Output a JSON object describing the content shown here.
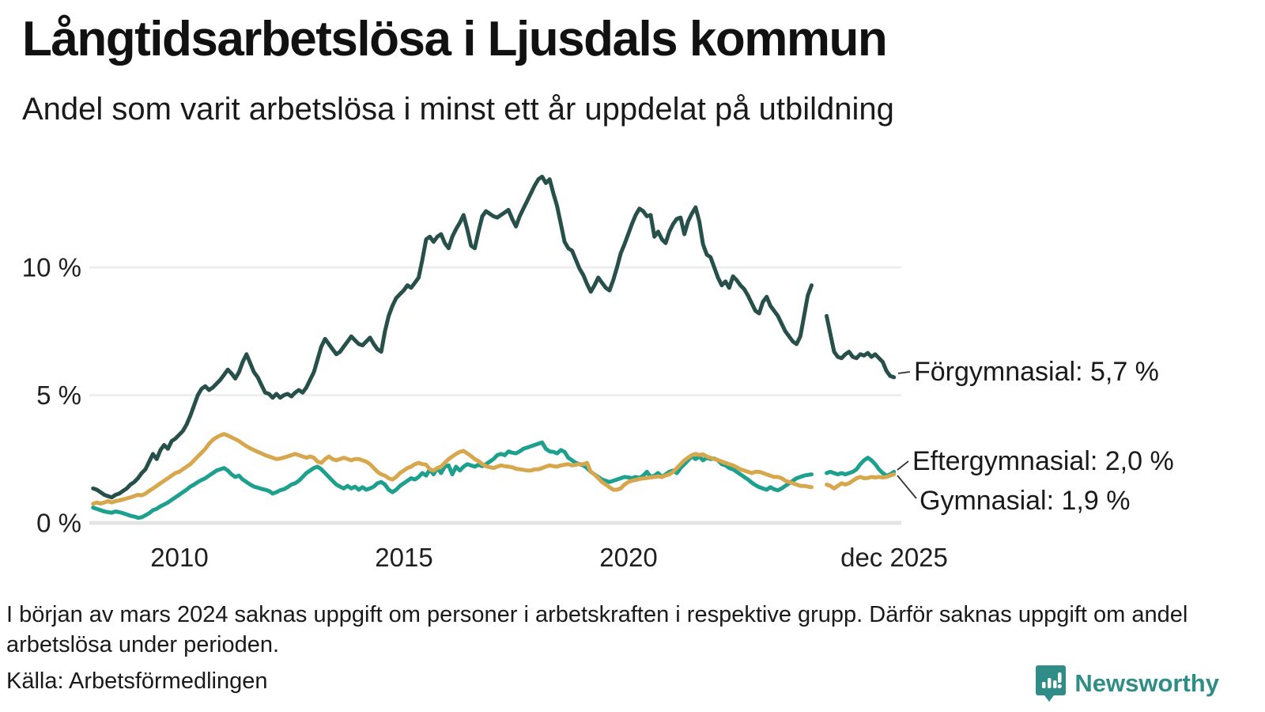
{
  "header": {
    "title": "Långtidsarbetslösa i Ljusdals kommun",
    "subtitle": "Andel som varit arbetslösa i minst ett år uppdelat på utbildning"
  },
  "chart_data": {
    "type": "line",
    "title": "Långtidsarbetslösa i Ljusdals kommun",
    "subtitle": "Andel som varit arbetslösa i minst ett år uppdelat på utbildning",
    "unit": "%",
    "grid": true,
    "legend_position": "end-of-line-labels",
    "x_axis": {
      "range_years": [
        2008,
        2026
      ],
      "ticks": [
        {
          "t": 2010,
          "label": "2010"
        },
        {
          "t": 2015,
          "label": "2015"
        },
        {
          "t": 2020,
          "label": "2020"
        },
        {
          "t": 2025.92,
          "label": "dec 2025"
        }
      ]
    },
    "y_axis": {
      "range": [
        0,
        14
      ],
      "ticks": [
        {
          "v": 0,
          "label": "0 %"
        },
        {
          "v": 5,
          "label": "5 %"
        },
        {
          "v": 10,
          "label": "10 %"
        }
      ]
    },
    "series": [
      {
        "name": "Förgymnasial",
        "color": "#27504a",
        "end_value": 5.7,
        "end_label": "Förgymnasial: 5,7 %",
        "segments": [
          {
            "start_year": 2008.083,
            "step_years": 0.08333,
            "values": [
              1.35,
              1.3,
              1.2,
              1.1,
              1.05,
              1.0,
              1.1,
              1.15,
              1.25,
              1.35,
              1.5,
              1.6,
              1.75,
              1.95,
              2.1,
              2.4,
              2.7,
              2.5,
              2.85,
              3.05,
              2.9,
              3.2,
              3.3,
              3.45,
              3.6,
              3.85,
              4.2,
              4.6,
              5.0,
              5.25,
              5.35,
              5.2,
              5.3,
              5.45,
              5.6,
              5.8,
              6.0,
              5.85,
              5.65,
              5.9,
              6.3,
              6.6,
              6.25,
              5.9,
              5.7,
              5.4,
              5.1,
              5.05,
              4.9,
              5.05,
              4.9,
              5.0,
              5.05,
              4.95,
              5.1,
              5.2,
              5.1,
              5.3,
              5.6,
              5.9,
              6.4,
              6.9,
              7.2,
              7.0,
              6.8,
              6.6,
              6.7,
              6.9,
              7.1,
              7.3,
              7.15,
              7.0,
              6.95,
              7.1,
              7.25,
              7.0,
              6.8,
              6.7,
              7.5,
              8.1,
              8.5,
              8.8,
              8.95,
              9.1,
              9.3,
              9.2,
              9.4,
              9.6,
              10.3,
              11.1,
              11.2,
              11.0,
              11.2,
              11.3,
              10.95,
              10.75,
              11.2,
              11.5,
              11.75,
              12.05,
              11.5,
              10.85,
              10.75,
              11.4,
              12.0,
              12.2,
              12.1,
              12.0,
              11.95,
              12.05,
              12.15,
              12.25,
              11.9,
              11.6,
              12.0,
              12.3,
              12.6,
              12.9,
              13.2,
              13.45,
              13.55,
              13.3,
              13.45,
              12.9,
              12.4,
              11.7,
              11.0,
              10.75,
              10.65,
              10.3,
              9.95,
              9.7,
              9.35,
              9.05,
              9.3,
              9.6,
              9.4,
              9.2,
              9.1,
              9.5,
              10.0,
              10.55,
              10.9,
              11.3,
              11.7,
              12.05,
              12.3,
              12.2,
              12.0,
              12.05,
              11.2,
              11.4,
              11.1,
              10.95,
              11.4,
              11.7,
              11.9,
              11.95,
              11.3,
              11.8,
              12.1,
              12.35,
              11.8,
              10.9,
              10.5,
              10.4,
              10.0,
              9.6,
              9.3,
              9.45,
              9.2,
              9.65,
              9.5,
              9.3,
              9.15,
              8.9,
              8.6,
              8.3,
              8.2,
              8.65,
              8.85,
              8.5,
              8.3,
              8.1,
              7.8,
              7.5,
              7.3,
              7.1,
              7.0,
              7.3,
              8.1,
              8.9,
              9.3
            ]
          },
          {
            "start_year": 2024.417,
            "step_years": 0.08333,
            "values": [
              8.1,
              7.4,
              6.7,
              6.5,
              6.45,
              6.6,
              6.7,
              6.5,
              6.45,
              6.6,
              6.55,
              6.65,
              6.5,
              6.6,
              6.45,
              6.3,
              5.95,
              5.75,
              5.7
            ]
          }
        ]
      },
      {
        "name": "Eftergymnasial",
        "color": "#1ea08e",
        "end_value": 2.0,
        "end_label": "Eftergymnasial: 2,0 %",
        "segments": [
          {
            "start_year": 2008.083,
            "step_years": 0.08333,
            "values": [
              0.6,
              0.55,
              0.5,
              0.45,
              0.42,
              0.4,
              0.45,
              0.42,
              0.38,
              0.33,
              0.28,
              0.25,
              0.2,
              0.22,
              0.3,
              0.38,
              0.5,
              0.55,
              0.65,
              0.72,
              0.8,
              0.9,
              1.0,
              1.1,
              1.2,
              1.3,
              1.42,
              1.5,
              1.6,
              1.68,
              1.75,
              1.85,
              1.95,
              2.05,
              2.1,
              2.15,
              2.05,
              1.9,
              1.8,
              1.85,
              1.7,
              1.6,
              1.5,
              1.42,
              1.38,
              1.33,
              1.3,
              1.25,
              1.15,
              1.2,
              1.28,
              1.32,
              1.4,
              1.5,
              1.55,
              1.65,
              1.8,
              1.95,
              2.05,
              2.15,
              2.2,
              2.1,
              1.95,
              1.8,
              1.65,
              1.5,
              1.42,
              1.35,
              1.45,
              1.35,
              1.42,
              1.3,
              1.4,
              1.3,
              1.35,
              1.42,
              1.55,
              1.6,
              1.5,
              1.3,
              1.2,
              1.3,
              1.45,
              1.55,
              1.65,
              1.75,
              1.7,
              1.8,
              1.95,
              1.85,
              2.1,
              1.9,
              2.15,
              1.95,
              2.2,
              2.25,
              1.9,
              2.2,
              2.05,
              2.2,
              2.3,
              2.25,
              2.2,
              2.28,
              2.22,
              2.3,
              2.4,
              2.5,
              2.65,
              2.7,
              2.65,
              2.8,
              2.75,
              2.72,
              2.8,
              2.9,
              2.95,
              3.0,
              3.05,
              3.1,
              3.15,
              2.9,
              2.8,
              2.78,
              2.72,
              2.85,
              2.78,
              2.55,
              2.45,
              2.35,
              2.3,
              2.25,
              2.15,
              2.0,
              1.9,
              1.8,
              1.7,
              1.65,
              1.6,
              1.65,
              1.7,
              1.75,
              1.8,
              1.78,
              1.75,
              1.8,
              1.76,
              1.85,
              2.0,
              1.8,
              1.85,
              1.95,
              1.8,
              1.9,
              2.0,
              2.05,
              1.95,
              2.15,
              2.3,
              2.45,
              2.6,
              2.5,
              2.6,
              2.45,
              2.55,
              2.5,
              2.52,
              2.45,
              2.3,
              2.25,
              2.15,
              2.1,
              2.0,
              1.9,
              1.8,
              1.7,
              1.58,
              1.48,
              1.4,
              1.35,
              1.3,
              1.4,
              1.32,
              1.28,
              1.35,
              1.45,
              1.55,
              1.65,
              1.75,
              1.8,
              1.85,
              1.88,
              1.9
            ]
          },
          {
            "start_year": 2024.417,
            "step_years": 0.08333,
            "values": [
              1.95,
              2.0,
              1.95,
              1.9,
              1.95,
              1.9,
              1.95,
              2.0,
              2.1,
              2.3,
              2.45,
              2.55,
              2.45,
              2.3,
              2.1,
              1.95,
              1.85,
              1.9,
              2.0
            ]
          }
        ]
      },
      {
        "name": "Gymnasial",
        "color": "#d6a74c",
        "end_value": 1.9,
        "end_label": "Gymnasial: 1,9 %",
        "segments": [
          {
            "start_year": 2008.083,
            "step_years": 0.08333,
            "values": [
              0.75,
              0.8,
              0.76,
              0.8,
              0.85,
              0.8,
              0.85,
              0.88,
              0.92,
              0.96,
              1.0,
              1.05,
              1.1,
              1.08,
              1.15,
              1.25,
              1.35,
              1.45,
              1.55,
              1.65,
              1.75,
              1.85,
              1.95,
              2.0,
              2.1,
              2.2,
              2.3,
              2.45,
              2.6,
              2.75,
              2.9,
              3.1,
              3.25,
              3.35,
              3.42,
              3.48,
              3.42,
              3.35,
              3.28,
              3.2,
              3.1,
              3.0,
              2.92,
              2.85,
              2.78,
              2.72,
              2.65,
              2.6,
              2.55,
              2.5,
              2.52,
              2.56,
              2.6,
              2.65,
              2.7,
              2.65,
              2.6,
              2.55,
              2.6,
              2.55,
              2.4,
              2.35,
              2.5,
              2.6,
              2.5,
              2.45,
              2.5,
              2.55,
              2.5,
              2.45,
              2.5,
              2.5,
              2.45,
              2.4,
              2.3,
              2.15,
              2.0,
              1.9,
              1.85,
              1.75,
              1.7,
              1.8,
              1.95,
              2.05,
              2.15,
              2.2,
              2.3,
              2.35,
              2.3,
              2.28,
              2.1,
              2.05,
              2.15,
              2.2,
              2.35,
              2.5,
              2.6,
              2.7,
              2.78,
              2.82,
              2.72,
              2.62,
              2.5,
              2.42,
              2.3,
              2.22,
              2.18,
              2.15,
              2.2,
              2.25,
              2.22,
              2.2,
              2.18,
              2.12,
              2.1,
              2.08,
              2.05,
              2.05,
              2.1,
              2.1,
              2.15,
              2.2,
              2.25,
              2.22,
              2.2,
              2.25,
              2.28,
              2.3,
              2.25,
              2.28,
              2.3,
              2.3,
              2.35,
              2.0,
              1.9,
              1.75,
              1.6,
              1.5,
              1.4,
              1.3,
              1.3,
              1.35,
              1.5,
              1.6,
              1.65,
              1.68,
              1.72,
              1.74,
              1.76,
              1.78,
              1.8,
              1.82,
              1.8,
              1.85,
              1.9,
              2.0,
              2.15,
              2.3,
              2.45,
              2.55,
              2.65,
              2.7,
              2.66,
              2.68,
              2.6,
              2.55,
              2.5,
              2.46,
              2.4,
              2.35,
              2.3,
              2.25,
              2.18,
              2.1,
              2.05,
              2.0,
              1.95,
              2.0,
              2.0,
              1.95,
              1.9,
              1.85,
              1.8,
              1.8,
              1.75,
              1.65,
              1.6,
              1.55,
              1.5,
              1.45,
              1.45,
              1.42,
              1.4
            ]
          },
          {
            "start_year": 2024.417,
            "step_years": 0.08333,
            "values": [
              1.5,
              1.45,
              1.35,
              1.45,
              1.55,
              1.5,
              1.55,
              1.65,
              1.75,
              1.8,
              1.75,
              1.76,
              1.8,
              1.78,
              1.8,
              1.78,
              1.8,
              1.85,
              1.9
            ]
          }
        ]
      }
    ]
  },
  "footer": {
    "note": "I början av mars 2024 saknas uppgift om personer i arbetskraften i respektive grupp. Därför saknas uppgift om andel arbetslösa under perioden.",
    "source": "Källa: Arbetsförmedlingen",
    "brand": "Newsworthy"
  },
  "colors": {
    "forgymnasial": "#27504a",
    "eftergymnasial": "#1ea08e",
    "gymnasial": "#d6a74c",
    "grid": "#ececee",
    "zero_line": "#e4e4e6",
    "brand_teal": "#2f8c86"
  }
}
